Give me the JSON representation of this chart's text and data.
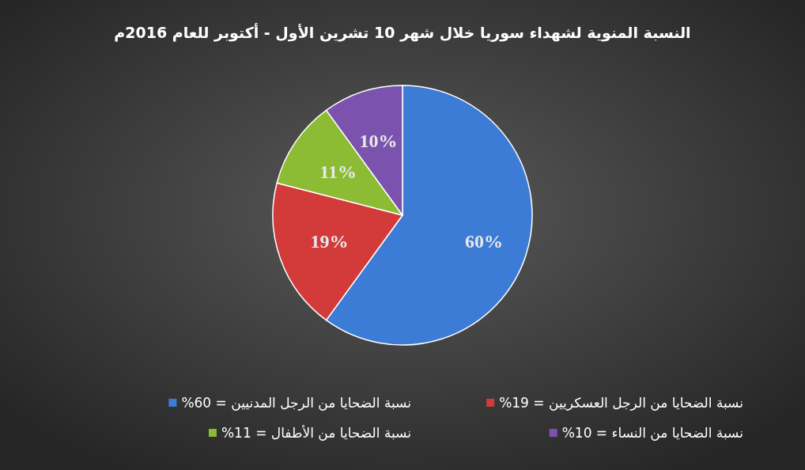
{
  "chart_data": {
    "type": "pie",
    "title": "النسبة المنوية لشهداء سوريا خلال شهر 10 تشرين الأول - أكتوبر  للعام 2016م",
    "categories": [
      "نسبة الضحايا من الرجل المدنيين = 60%",
      "نسبة الضحايا من الرجل العسكريين = 19%",
      "نسبة الضحايا من الأطفال = 11%",
      "نسبة الضحايا من النساء = 10%"
    ],
    "values": [
      60,
      19,
      11,
      10
    ],
    "value_labels": [
      "60%",
      "19%",
      "11%",
      "10%"
    ],
    "colors": [
      "#3c7bd6",
      "#d33b3b",
      "#8cbb34",
      "#7b52ad"
    ],
    "legend": "bottom"
  }
}
